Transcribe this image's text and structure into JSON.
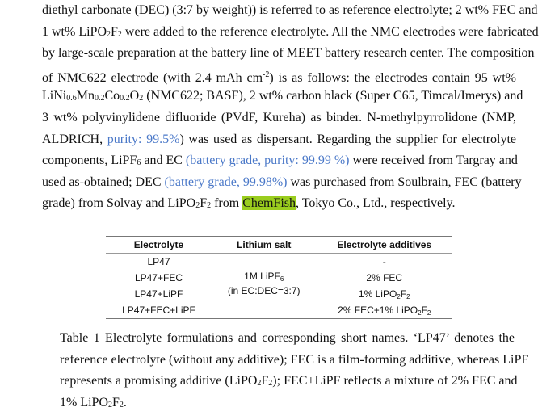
{
  "body": {
    "lines": [
      [
        {
          "t": "diethyl carbonate (DEC) (3:7 by weight)) is referred to as reference electrolyte; 2 wt% FEC and"
        }
      ],
      [
        {
          "t": "1 wt% LiPO"
        },
        {
          "t": "2",
          "s": "sub"
        },
        {
          "t": "F"
        },
        {
          "t": "2",
          "s": "sub"
        },
        {
          "t": " were added to the reference electrolyte. All the NMC electrodes were fabricated"
        }
      ],
      [
        {
          "t": "by large-scale preparation at the battery line of MEET battery research center. The composition"
        }
      ],
      [
        {
          "t": "of NMC622 electrode (with 2.4 mAh cm"
        },
        {
          "t": "-2",
          "s": "sup"
        },
        {
          "t": ") is as follows: the electrodes contain 95 wt%"
        }
      ],
      [
        {
          "t": "LiNi"
        },
        {
          "t": "0.6",
          "s": "sub"
        },
        {
          "t": "Mn"
        },
        {
          "t": "0.2",
          "s": "sub"
        },
        {
          "t": "Co"
        },
        {
          "t": "0.2",
          "s": "sub"
        },
        {
          "t": "O"
        },
        {
          "t": "2",
          "s": "sub"
        },
        {
          "t": " (NMC622; BASF), 2 wt% carbon black (Super C65, Timcal/Imerys) and"
        }
      ],
      [
        {
          "t": "3 wt% polyvinylidene difluoride (PVdF, Kureha) as binder. N-methylpyrrolidone (NMP,"
        }
      ],
      [
        {
          "t": "ALDRICH, "
        },
        {
          "t": "purity: 99.5%",
          "s": "link"
        },
        {
          "t": ") was used as dispersant. Regarding the supplier for electrolyte"
        }
      ],
      [
        {
          "t": "components, LiPF"
        },
        {
          "t": "6",
          "s": "sub"
        },
        {
          "t": " and EC "
        },
        {
          "t": "(battery grade, purity: 99.99 %)",
          "s": "link"
        },
        {
          "t": " were received from Targray and"
        }
      ],
      [
        {
          "t": "used as-obtained; DEC "
        },
        {
          "t": "(battery grade, 99.98%)",
          "s": "link"
        },
        {
          "t": " was purchased from Soulbrain, FEC (battery"
        }
      ],
      [
        {
          "t": "grade) from Solvay and LiPO"
        },
        {
          "t": "2",
          "s": "sub"
        },
        {
          "t": "F"
        },
        {
          "t": "2",
          "s": "sub"
        },
        {
          "t": " from "
        },
        {
          "t": "ChemFish",
          "s": "hl"
        },
        {
          "t": ", Tokyo Co., Ltd., respectively."
        }
      ]
    ]
  },
  "table": {
    "headers": [
      "Electrolyte",
      "Lithium salt",
      "Electrolyte additives"
    ],
    "electrolytes": [
      "LP47",
      "LP47+FEC",
      "LP47+LiPF",
      "LP47+FEC+LiPF"
    ],
    "salt_line1": "1M LiPF",
    "salt_line1_sub": "6",
    "salt_line2": "(in EC:DEC=3:7)",
    "additives": [
      [
        {
          "t": "-"
        }
      ],
      [
        {
          "t": "2% FEC"
        }
      ],
      [
        {
          "t": "1% LiPO"
        },
        {
          "t": "2",
          "s": "tsub"
        },
        {
          "t": "F"
        },
        {
          "t": "2",
          "s": "tsub"
        }
      ],
      [
        {
          "t": "2% FEC+1% LiPO"
        },
        {
          "t": "2",
          "s": "tsub"
        },
        {
          "t": "F"
        },
        {
          "t": "2",
          "s": "tsub"
        }
      ]
    ]
  },
  "caption": {
    "lines": [
      [
        {
          "t": "Table 1 Electrolyte formulations and corresponding short names. ‘LP47’ denotes the"
        }
      ],
      [
        {
          "t": "reference electrolyte (without any additive); FEC is a film-forming additive, whereas LiPF"
        }
      ],
      [
        {
          "t": "represents a promising additive (LiPO"
        },
        {
          "t": "2",
          "s": "sub"
        },
        {
          "t": "F"
        },
        {
          "t": "2",
          "s": "sub"
        },
        {
          "t": "); FEC+LiPF reflects a mixture of 2% FEC and"
        }
      ],
      [
        {
          "t": "1% LiPO"
        },
        {
          "t": "2",
          "s": "sub"
        },
        {
          "t": "F"
        },
        {
          "t": "2",
          "s": "sub"
        },
        {
          "t": "."
        }
      ]
    ]
  },
  "colors": {
    "link": "#4a78c8",
    "highlight": "#9acd1e"
  }
}
